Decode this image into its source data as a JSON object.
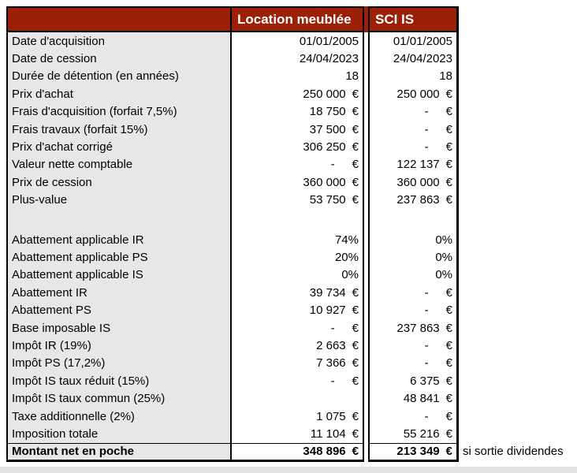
{
  "table": {
    "currency": "€",
    "columns": [
      "",
      "Location meublée",
      "SCI IS"
    ],
    "rows": [
      {
        "label": "Date d'acquisition",
        "type": "plain",
        "lm": "01/01/2005",
        "sci": "01/01/2005"
      },
      {
        "label": "Date de cession",
        "type": "plain",
        "lm": "24/04/2023",
        "sci": "24/04/2023"
      },
      {
        "label": "Durée de détention (en années)",
        "type": "plain",
        "lm": "18",
        "sci": "18"
      },
      {
        "label": "Prix d'achat",
        "type": "money",
        "lm": "250 000",
        "sci": "250 000"
      },
      {
        "label": "Frais d'acquisition (forfait 7,5%)",
        "type": "money",
        "lm": "18 750",
        "sci": "-"
      },
      {
        "label": "Frais travaux (forfait 15%)",
        "type": "money",
        "lm": "37 500",
        "sci": "-"
      },
      {
        "label": "Prix d'achat corrigé",
        "type": "money",
        "lm": "306 250",
        "sci": "-"
      },
      {
        "label": "Valeur nette comptable",
        "type": "money",
        "lm": "-",
        "sci": "122 137"
      },
      {
        "label": "Prix de cession",
        "type": "money",
        "lm": "360 000",
        "sci": "360 000"
      },
      {
        "label": "Plus-value",
        "type": "money",
        "lm": "53 750",
        "sci": "237 863"
      },
      {
        "label": "",
        "type": "blank",
        "lm": null,
        "sci": null
      },
      {
        "label": "Abattement applicable IR",
        "type": "plain",
        "lm": "74%",
        "sci": "0%"
      },
      {
        "label": "Abattement applicable PS",
        "type": "plain",
        "lm": "20%",
        "sci": "0%"
      },
      {
        "label": "Abattement applicable IS",
        "type": "plain",
        "lm": "0%",
        "sci": "0%"
      },
      {
        "label": "Abattement IR",
        "type": "money",
        "lm": "39 734",
        "sci": "-"
      },
      {
        "label": "Abattement PS",
        "type": "money",
        "lm": "10 927",
        "sci": "-"
      },
      {
        "label": "Base imposable IS",
        "type": "money",
        "lm": "-",
        "sci": "237 863"
      },
      {
        "label": "Impôt IR (19%)",
        "type": "money",
        "lm": "2 663",
        "sci": "-"
      },
      {
        "label": "Impôt PS (17,2%)",
        "type": "money",
        "lm": "7 366",
        "sci": "-"
      },
      {
        "label": "Impôt IS taux réduit (15%)",
        "type": "money",
        "lm": "-",
        "sci": "6 375"
      },
      {
        "label": "Impôt IS taux commun (25%)",
        "type": "money",
        "lm": null,
        "sci": "48 841"
      },
      {
        "label": "Taxe additionnelle (2%)",
        "type": "money",
        "lm": "1 075",
        "sci": "-"
      },
      {
        "label": "Imposition totale",
        "type": "money",
        "lm": "11 104",
        "sci": "55 216"
      },
      {
        "label": "Montant net en poche",
        "type": "money",
        "lm": "348 896",
        "sci": "213 349",
        "bold": true
      }
    ],
    "footnote": "si sortie dividendes"
  },
  "colors": {
    "header_bg": "#9B2007",
    "header_text": "#FFFFFF",
    "label_col_bg": "#E8E7E7",
    "border_color": "#000000",
    "value_bg": "#FFFFFF",
    "page_bg": "#FFFFFF",
    "footer_strip": "#E2E2E2"
  }
}
